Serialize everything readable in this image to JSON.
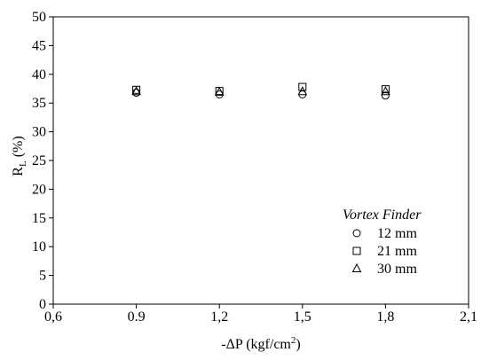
{
  "chart_data": {
    "type": "scatter",
    "title": "",
    "xlabel": {
      "prefix": "-ΔP (kgf/cm",
      "sup": "2",
      "suffix": ")"
    },
    "ylabel": {
      "main": "R",
      "sub": "L",
      "suffix": " (%)"
    },
    "xlim": [
      0.6,
      2.1
    ],
    "ylim": [
      0,
      50
    ],
    "xticks": [
      0.6,
      0.9,
      1.2,
      1.5,
      1.8,
      2.1
    ],
    "xtick_labels": [
      "0,6",
      "0.9",
      "1,2",
      "1,5",
      "1,8",
      "2,1"
    ],
    "yticks": [
      0,
      5,
      10,
      15,
      20,
      25,
      30,
      35,
      40,
      45,
      50
    ],
    "ytick_labels": [
      "0",
      "5",
      "10",
      "15",
      "20",
      "25",
      "30",
      "35",
      "40",
      "45",
      "50"
    ],
    "grid": false,
    "legend": {
      "title": "Vortex Finder",
      "placement": "lower-right"
    },
    "series": [
      {
        "name": "12 mm",
        "marker": "circle",
        "x": [
          0.9,
          1.2,
          1.5,
          1.8
        ],
        "y": [
          36.8,
          36.5,
          36.5,
          36.3
        ]
      },
      {
        "name": "21 mm",
        "marker": "square",
        "x": [
          0.9,
          1.2,
          1.5,
          1.8
        ],
        "y": [
          37.3,
          37.1,
          37.8,
          37.4
        ]
      },
      {
        "name": "30 mm",
        "marker": "triangle",
        "x": [
          0.9,
          1.2,
          1.5,
          1.8
        ],
        "y": [
          37.0,
          36.9,
          37.0,
          37.0
        ]
      }
    ]
  }
}
